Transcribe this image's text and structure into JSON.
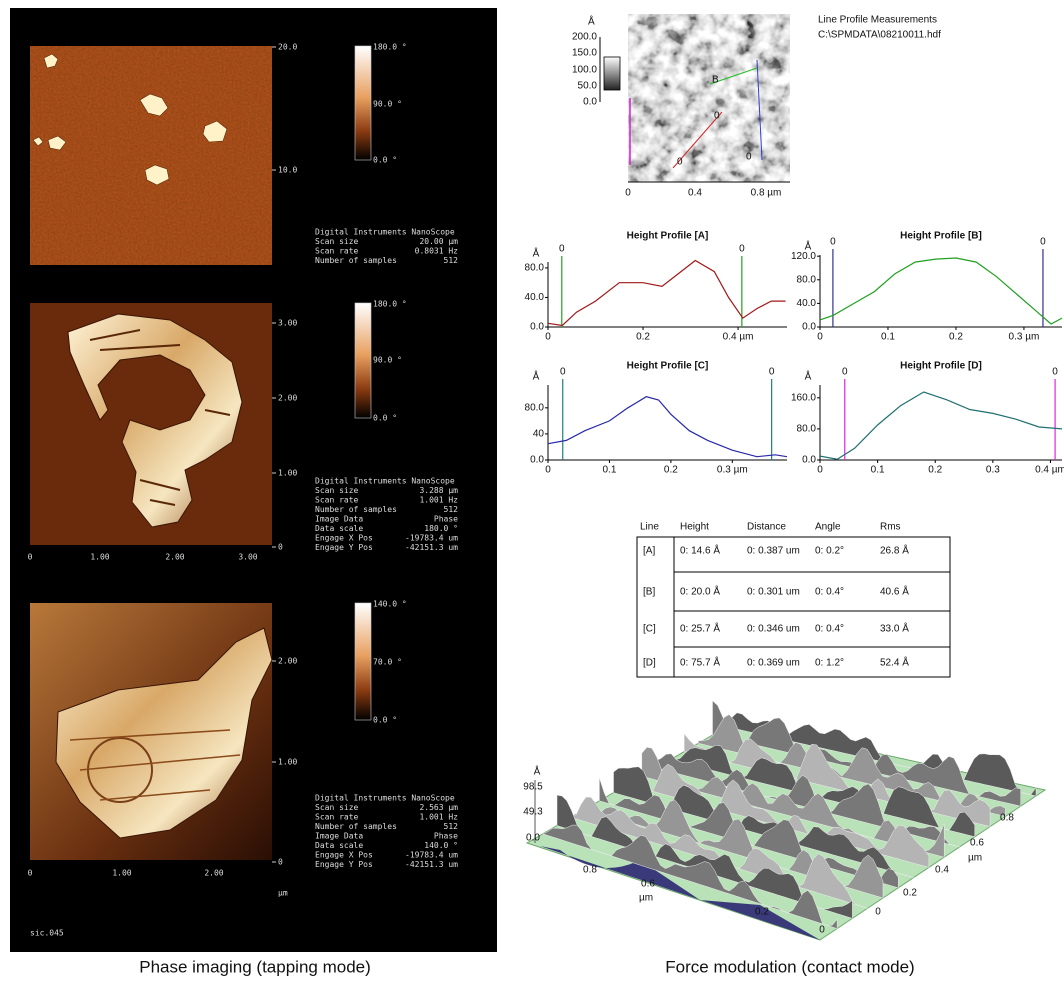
{
  "left": {
    "images": [
      {
        "right_ticks": [
          "20.0",
          "10.0"
        ],
        "colorbar": [
          "180.0 °",
          "90.0 °",
          "0.0 °"
        ],
        "info_heading": "Digital Instruments NanoScope",
        "info": [
          [
            "Scan size",
            "20.00 µm"
          ],
          [
            "Scan rate",
            "0.8031 Hz"
          ],
          [
            "Number of samples",
            "512"
          ]
        ]
      },
      {
        "right_ticks": [
          "3.00",
          "2.00",
          "1.00",
          "0"
        ],
        "bottom_ticks": [
          "0",
          "1.00",
          "2.00",
          "3.00"
        ],
        "colorbar": [
          "180.0 °",
          "90.0 °",
          "0.0 °"
        ],
        "info_heading": "Digital Instruments NanoScope",
        "info": [
          [
            "Scan size",
            "3.288 µm"
          ],
          [
            "Scan rate",
            "1.001 Hz"
          ],
          [
            "Number of samples",
            "512"
          ],
          [
            "Image Data",
            "Phase"
          ],
          [
            "Data scale",
            "180.0 °"
          ],
          [
            "Engage X Pos",
            "-19783.4 um"
          ],
          [
            "Engage Y Pos",
            "-42151.3 um"
          ]
        ]
      },
      {
        "right_ticks": [
          "2.00",
          "1.00",
          "0"
        ],
        "bottom_ticks": [
          "0",
          "1.00",
          "2.00"
        ],
        "unit": "µm",
        "colorbar": [
          "140.0 °",
          "70.0 °",
          "0.0 °"
        ],
        "info_heading": "Digital Instruments NanoScope",
        "info": [
          [
            "Scan size",
            "2.563 µm"
          ],
          [
            "Scan rate",
            "1.001 Hz"
          ],
          [
            "Number of samples",
            "512"
          ],
          [
            "Image Data",
            "Phase"
          ],
          [
            "Data scale",
            "140.0 °"
          ],
          [
            "Engage X Pos",
            "-19783.4 um"
          ],
          [
            "Engage Y Pos",
            "-42151.3 um"
          ]
        ]
      }
    ],
    "file_label": "sic.045",
    "caption": "Phase imaging (tapping mode)"
  },
  "right": {
    "image": {
      "title_lines": [
        "Line Profile Measurements",
        "C:\\SPMDATA\\08210011.hdf"
      ],
      "unit": "Å",
      "yticks": [
        "200.0",
        "150.0",
        "100.0",
        "50.0",
        "0.0"
      ],
      "xticks": [
        "0",
        "0.4",
        "0.8 µm"
      ],
      "cursor_labels": [
        "B",
        "0",
        "0",
        "0"
      ]
    },
    "profiles": [
      {
        "title": "Height Profile [A]",
        "unit": "Å",
        "color": "#a01818",
        "marker_color": "#20a020",
        "xlim": [
          0,
          0.503
        ],
        "ylim": [
          0,
          88
        ],
        "xticks": [
          0,
          0.2,
          {
            "value": 0.4,
            "label": "0.4 µm"
          }
        ],
        "yticks": [
          {
            "value": 80,
            "label": "80.0"
          },
          {
            "value": 40,
            "label": "40.0"
          },
          {
            "value": 0,
            "label": "0.0"
          }
        ],
        "markers": [
          {
            "label": "0",
            "x": 0.029
          },
          {
            "label": "0",
            "x": 0.408
          }
        ],
        "x": [
          0,
          0.03,
          0.06,
          0.1,
          0.15,
          0.2,
          0.24,
          0.28,
          0.31,
          0.35,
          0.38,
          0.41,
          0.44,
          0.47,
          0.5
        ],
        "y": [
          5,
          2,
          20,
          35,
          60,
          60,
          55,
          75,
          90,
          75,
          40,
          12,
          25,
          35,
          35
        ]
      },
      {
        "title": "Height Profile [B]",
        "unit": "Å",
        "color": "#20a020",
        "marker_color": "#303090",
        "xlim": [
          0,
          0.356
        ],
        "ylim": [
          0,
          122
        ],
        "xticks": [
          0,
          0.1,
          0.2,
          {
            "value": 0.3,
            "label": "0.3 µm"
          }
        ],
        "yticks": [
          {
            "value": 120,
            "label": "120.0"
          },
          {
            "value": 80,
            "label": "80.0"
          },
          {
            "value": 40,
            "label": "40.0"
          },
          {
            "value": 0,
            "label": "0.0"
          }
        ],
        "markers": [
          {
            "label": "0",
            "x": 0.019
          },
          {
            "label": "0",
            "x": 0.328
          }
        ],
        "x": [
          0,
          0.02,
          0.05,
          0.08,
          0.11,
          0.14,
          0.17,
          0.2,
          0.23,
          0.26,
          0.29,
          0.32,
          0.34,
          0.356
        ],
        "y": [
          12,
          20,
          40,
          60,
          90,
          110,
          115,
          117,
          110,
          85,
          55,
          25,
          5,
          15
        ]
      },
      {
        "title": "Height Profile [C]",
        "unit": "Å",
        "color": "#2828a8",
        "marker_color": "#208080",
        "xlim": [
          0,
          0.389
        ],
        "ylim": [
          0,
          115
        ],
        "xticks": [
          0,
          0.1,
          0.2,
          {
            "value": 0.3,
            "label": "0.3 µm"
          }
        ],
        "yticks": [
          {
            "value": 80,
            "label": "80.0"
          },
          40,
          {
            "value": 0,
            "label": "0.0"
          }
        ],
        "markers": [
          {
            "label": "0",
            "x": 0.024
          },
          {
            "label": "0",
            "x": 0.364
          }
        ],
        "x": [
          0,
          0.03,
          0.06,
          0.1,
          0.13,
          0.16,
          0.18,
          0.2,
          0.23,
          0.26,
          0.3,
          0.34,
          0.37,
          0.389
        ],
        "y": [
          25,
          30,
          45,
          60,
          80,
          97,
          92,
          70,
          45,
          30,
          15,
          5,
          8,
          5
        ]
      },
      {
        "title": "Height Profile [D]",
        "unit": "Å",
        "color": "#207070",
        "marker_color": "#e020e0",
        "xlim": [
          0,
          0.42
        ],
        "ylim": [
          0,
          193
        ],
        "xticks": [
          0,
          0.1,
          0.2,
          0.3,
          {
            "value": 0.4,
            "label": "0.4 µm"
          }
        ],
        "yticks": [
          {
            "value": 160,
            "label": "160.0"
          },
          {
            "value": 80,
            "label": "80.0"
          },
          {
            "value": 0,
            "label": "0.0"
          }
        ],
        "markers": [
          {
            "label": "0",
            "x": 0.043
          },
          {
            "label": "0",
            "x": 0.408
          }
        ],
        "x": [
          0,
          0.03,
          0.06,
          0.1,
          0.14,
          0.18,
          0.22,
          0.26,
          0.3,
          0.34,
          0.38,
          0.42
        ],
        "y": [
          10,
          2,
          30,
          90,
          140,
          175,
          155,
          130,
          120,
          105,
          85,
          80
        ]
      }
    ],
    "table": {
      "header": [
        "Line",
        "Height",
        "Distance",
        "Angle",
        "Rms"
      ],
      "rows": [
        {
          "cells": [
            "[A]",
            "0:  14.6 Å",
            "0:  0.387 um",
            "0:  0.2°",
            "26.8 Å"
          ],
          "colors": [
            "#c02020",
            "#20a020",
            "#c02020"
          ]
        },
        {
          "cells": [
            "[B]",
            "0:  20.0 Å",
            "0:  0.301 um",
            "0:  0.4°",
            "40.6 Å"
          ],
          "colors": [
            "#20a020",
            "#303090",
            "#20a020"
          ]
        },
        {
          "cells": [
            "[C]",
            "0:  25.7 Å",
            "0:  0.346 um",
            "0:  0.4°",
            "33.0 Å"
          ],
          "colors": [
            "#303090",
            "#207070",
            "#303090"
          ]
        },
        {
          "cells": [
            "[D]",
            "0:  75.7 Å",
            "0:  0.369 um",
            "0:  1.2°",
            "52.4 Å"
          ],
          "colors": [
            "#207070",
            "#d020d0",
            "#207070"
          ]
        }
      ]
    },
    "surface": {
      "unit": "Å",
      "zticks": [
        "98.5",
        "49.3",
        "0.0"
      ],
      "left_axis": [
        "0.8",
        "0.6",
        "µm",
        "0.2",
        "0"
      ],
      "right_axis": [
        "0.8",
        "0.6",
        "µm",
        "0.4",
        "0.2",
        "0"
      ]
    },
    "caption": "Force modulation (contact mode)"
  }
}
